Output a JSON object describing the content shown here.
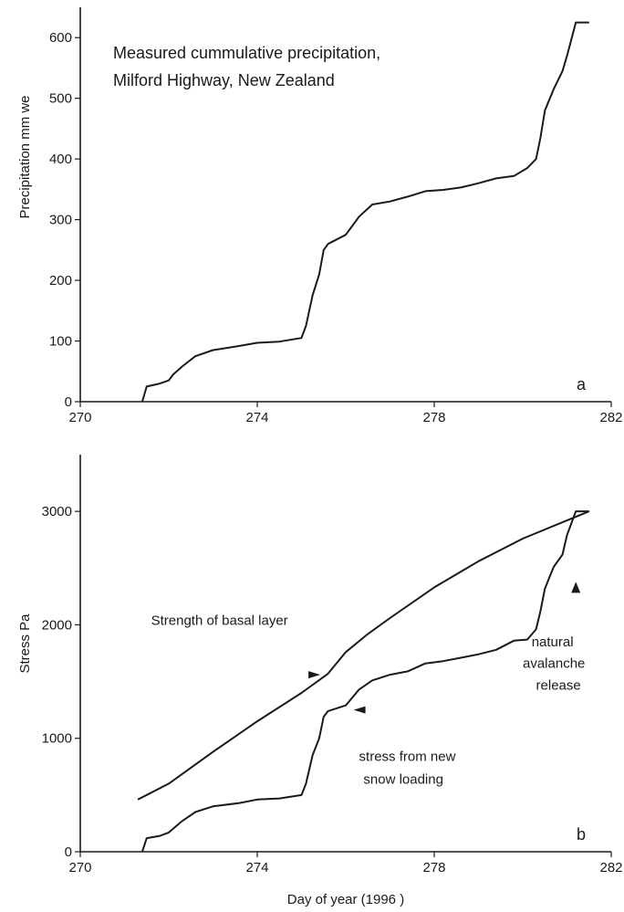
{
  "chart_data": [
    {
      "type": "line",
      "panel_label": "a",
      "title_lines": [
        "Measured cummulative precipitation,",
        "Milford Highway, New Zealand"
      ],
      "xlabel": "",
      "ylabel": "Precipitation mm we",
      "xlim": [
        270,
        282
      ],
      "ylim": [
        0,
        650
      ],
      "xticks": [
        270,
        274,
        278,
        282
      ],
      "yticks": [
        0,
        100,
        200,
        300,
        400,
        500,
        600
      ],
      "grid": false,
      "series": [
        {
          "x": [
            271.4,
            271.5,
            271.8,
            272.0,
            272.1,
            272.3,
            272.6,
            273.0,
            273.6,
            274.0,
            274.5,
            275.0,
            275.1,
            275.25,
            275.4,
            275.5,
            275.6,
            276.0,
            276.3,
            276.6,
            277.0,
            277.4,
            277.8,
            278.2,
            278.6,
            279.0,
            279.4,
            279.8,
            280.1,
            280.3,
            280.4,
            280.5,
            280.7,
            280.9,
            281.0,
            281.2,
            281.5
          ],
          "y": [
            0,
            25,
            30,
            35,
            45,
            58,
            75,
            85,
            92,
            97,
            99,
            105,
            125,
            175,
            210,
            250,
            260,
            275,
            305,
            325,
            330,
            338,
            347,
            349,
            353,
            360,
            368,
            372,
            385,
            400,
            435,
            480,
            515,
            545,
            570,
            625,
            625
          ]
        }
      ]
    },
    {
      "type": "line",
      "panel_label": "b",
      "xlabel": "Day of year (1996 )",
      "ylabel": "Stress Pa",
      "xlim": [
        270,
        282
      ],
      "ylim": [
        0,
        3500
      ],
      "xticks": [
        270,
        274,
        278,
        282
      ],
      "yticks": [
        0,
        1000,
        2000,
        3000
      ],
      "grid": false,
      "series": [
        {
          "label": "Strength of basal layer",
          "x": [
            271.3,
            272.0,
            273.0,
            274.0,
            275.0,
            275.6,
            276.0,
            276.5,
            277.0,
            278.0,
            279.0,
            280.0,
            281.0,
            281.5
          ],
          "y": [
            460,
            600,
            880,
            1150,
            1400,
            1570,
            1760,
            1920,
            2060,
            2330,
            2560,
            2760,
            2920,
            3000
          ]
        },
        {
          "label": "stress from new snow loading",
          "x": [
            271.4,
            271.5,
            271.8,
            272.0,
            272.3,
            272.6,
            273.0,
            273.6,
            274.0,
            274.5,
            275.0,
            275.1,
            275.25,
            275.4,
            275.5,
            275.6,
            276.0,
            276.3,
            276.6,
            277.0,
            277.4,
            277.8,
            278.2,
            278.6,
            279.0,
            279.4,
            279.8,
            280.1,
            280.3,
            280.4,
            280.5,
            280.7,
            280.9,
            281.0,
            281.2,
            281.5
          ],
          "y": [
            0,
            120,
            140,
            170,
            270,
            350,
            400,
            430,
            460,
            470,
            500,
            600,
            850,
            1000,
            1190,
            1240,
            1290,
            1430,
            1510,
            1560,
            1590,
            1660,
            1680,
            1710,
            1740,
            1780,
            1860,
            1870,
            1960,
            2120,
            2320,
            2510,
            2620,
            2790,
            3000,
            3000
          ]
        }
      ],
      "annotations": [
        {
          "text": "Strength of basal layer",
          "x": 271.6,
          "y": 2000
        },
        {
          "text": "natural",
          "x": 280.2,
          "y": 1810
        },
        {
          "text": "avalanche",
          "x": 280.0,
          "y": 1620
        },
        {
          "text": "release",
          "x": 280.3,
          "y": 1430
        },
        {
          "text": "stress from new",
          "x": 276.3,
          "y": 800
        },
        {
          "text": "snow loading",
          "x": 276.4,
          "y": 600
        }
      ],
      "markers": [
        {
          "shape": "arrowhead-right",
          "x": 275.3,
          "y": 1560
        },
        {
          "shape": "arrowhead-left",
          "x": 276.3,
          "y": 1250
        },
        {
          "shape": "arrowhead-up",
          "x": 281.2,
          "y": 2330
        }
      ]
    }
  ]
}
